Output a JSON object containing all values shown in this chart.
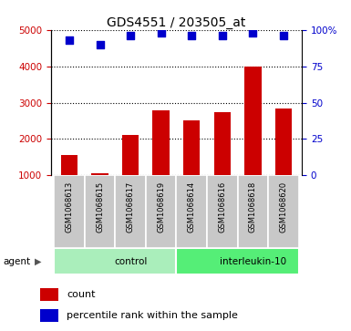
{
  "title": "GDS4551 / 203505_at",
  "samples": [
    "GSM1068613",
    "GSM1068615",
    "GSM1068617",
    "GSM1068619",
    "GSM1068614",
    "GSM1068616",
    "GSM1068618",
    "GSM1068620"
  ],
  "counts": [
    1550,
    1050,
    2100,
    2800,
    2500,
    2750,
    4000,
    2850
  ],
  "percentile_ranks": [
    93,
    90,
    96,
    98,
    96,
    96,
    98,
    96
  ],
  "bar_color": "#cc0000",
  "dot_color": "#0000cc",
  "groups": [
    {
      "label": "control",
      "start": 0,
      "end": 4,
      "color": "#aaeebb"
    },
    {
      "label": "interleukin-10",
      "start": 4,
      "end": 8,
      "color": "#55ee77"
    }
  ],
  "ylim_left": [
    1000,
    5000
  ],
  "ylim_right": [
    0,
    100
  ],
  "yticks_left": [
    1000,
    2000,
    3000,
    4000,
    5000
  ],
  "yticks_right": [
    0,
    25,
    50,
    75,
    100
  ],
  "right_tick_labels": [
    "0",
    "25",
    "50",
    "75",
    "100%"
  ],
  "left_tick_color": "#cc0000",
  "right_tick_color": "#0000cc",
  "agent_label": "agent",
  "legend_count_label": "count",
  "legend_percentile_label": "percentile rank within the sample",
  "sample_box_color": "#c8c8c8",
  "fig_width": 3.85,
  "fig_height": 3.63
}
